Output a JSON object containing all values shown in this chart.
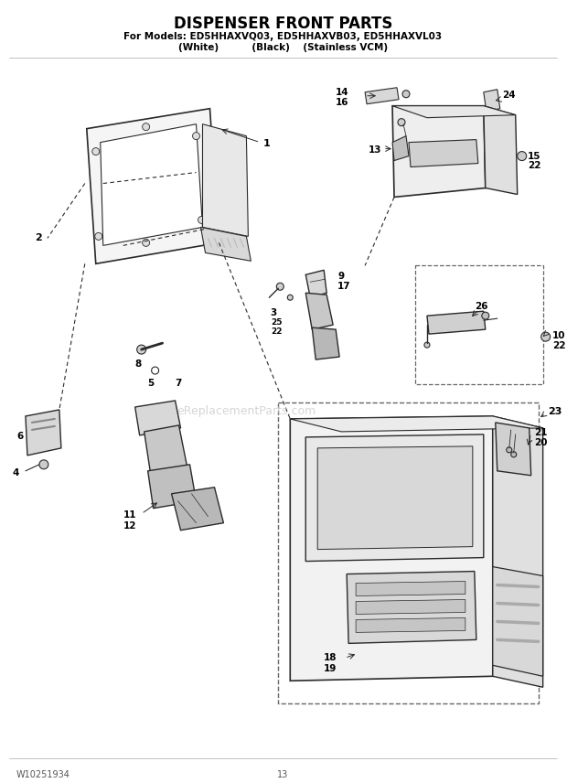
{
  "title_line1": "DISPENSER FRONT PARTS",
  "title_line2": "For Models: ED5HHAXVQ03, ED5HHAXVB03, ED5HHAXVL03",
  "title_line3": "(White)          (Black)    (Stainless VCM)",
  "footer_left": "W10251934",
  "footer_center": "13",
  "bg_color": "#ffffff",
  "lc": "#2a2a2a",
  "watermark": "eReplacementParts.com"
}
